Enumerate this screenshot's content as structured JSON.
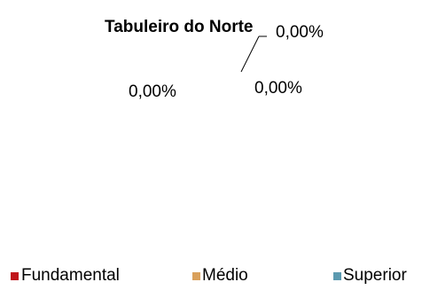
{
  "chart_data": {
    "type": "pie",
    "title": "Tabuleiro do Norte",
    "categories": [
      "Fundamental",
      "Médio",
      "Superior"
    ],
    "values": [
      0,
      0,
      0
    ],
    "data_labels": [
      "0,00%",
      "0,00%",
      "0,00%"
    ],
    "legend_position": "bottom",
    "colors": [
      "#c0151b",
      "#d9a05b",
      "#5b9ab0"
    ]
  }
}
